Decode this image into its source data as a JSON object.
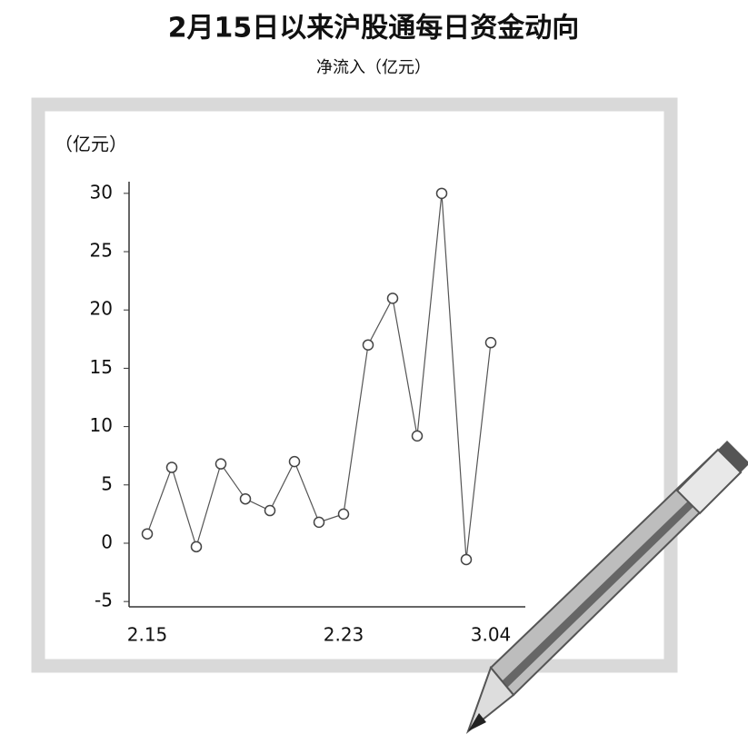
{
  "chart_data": {
    "type": "line",
    "title": "2月15日以来沪股通每日资金动向",
    "subtitle": "净流入（亿元）",
    "y_axis_label": "（亿元）",
    "categories": [
      "2.15",
      null,
      null,
      null,
      null,
      null,
      null,
      null,
      "2.23",
      null,
      null,
      null,
      null,
      null,
      "3.04"
    ],
    "values": [
      0.8,
      6.5,
      -0.3,
      6.8,
      3.8,
      2.8,
      7.0,
      1.8,
      2.5,
      17.0,
      21.0,
      9.2,
      30.0,
      -1.4,
      17.2
    ],
    "color": "#555555",
    "ylim": [
      -6,
      31
    ],
    "yticks": [
      -5,
      0,
      5,
      10,
      15,
      20,
      25,
      30
    ]
  }
}
